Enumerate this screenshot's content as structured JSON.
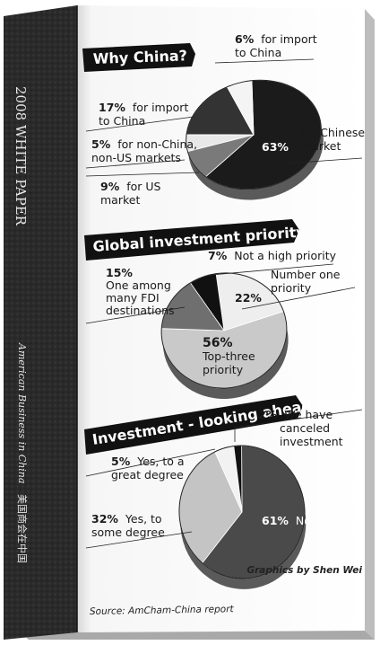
{
  "book": {
    "spine_title": "2008 WHITE PAPER",
    "spine_subtitle": "American Business in China",
    "spine_chinese": "美国商会在中国"
  },
  "charts_meta": {
    "credit": "Graphics by Shen Wei",
    "source": "Source: AmCham-China report"
  },
  "chart_data": [
    {
      "type": "pie",
      "title": "Why China?",
      "slices": [
        {
          "name": "for Chinese market",
          "value": 63,
          "pct_text": "63%",
          "label": [
            "for Chinese",
            "market"
          ],
          "color": "#1b1b1b"
        },
        {
          "name": "for US market",
          "value": 9,
          "pct_text": "9%",
          "label": [
            "for US",
            "market"
          ],
          "color": "#7a7a7a"
        },
        {
          "name": "for non-China, non-US markets",
          "value": 5,
          "pct_text": "5%",
          "label": [
            "for non-China,",
            "non-US markets"
          ],
          "color": "#e8e8e8"
        },
        {
          "name": "for import to China",
          "value": 17,
          "pct_text": "17%",
          "label": [
            "for import",
            "to China"
          ],
          "color": "#333333"
        },
        {
          "name": "for import to China",
          "value": 6,
          "pct_text": "6%",
          "label": [
            "for import",
            "to China"
          ],
          "color": "#f4f4f4"
        }
      ]
    },
    {
      "type": "pie",
      "title": "Global investment priority",
      "slices": [
        {
          "name": "Number one priority",
          "value": 22,
          "pct_text": "22%",
          "label": [
            "Number one",
            "priority"
          ],
          "color": "#eeeeee"
        },
        {
          "name": "Top-three priority",
          "value": 56,
          "pct_text": "56%",
          "label": [
            "Top-three",
            "priority"
          ],
          "color": "#c9c9c9"
        },
        {
          "name": "One among many FDI destinations",
          "value": 15,
          "pct_text": "15%",
          "label": [
            "One among",
            "many FDI",
            "destinations"
          ],
          "color": "#6f6f6f"
        },
        {
          "name": "Not a high priority",
          "value": 7,
          "pct_text": "7%",
          "label": [
            "Not a high priority"
          ],
          "color": "#111111"
        }
      ]
    },
    {
      "type": "pie",
      "title": "Investment - looking ahead",
      "slices": [
        {
          "name": "No",
          "value": 61,
          "pct_text": "61%",
          "label": [
            "No"
          ],
          "color": "#4a4a4a"
        },
        {
          "name": "Yes, to some degree",
          "value": 32,
          "pct_text": "32%",
          "label": [
            "Yes, to",
            "some degree"
          ],
          "color": "#c4c4c4"
        },
        {
          "name": "Yes, to a great degree",
          "value": 5,
          "pct_text": "5%",
          "label": [
            "Yes, to a",
            "great degree"
          ],
          "color": "#f2f2f2"
        },
        {
          "name": "We have canceled investment",
          "value": 2,
          "pct_text": "2%",
          "label": [
            "We have",
            "canceled",
            "investment"
          ],
          "color": "#111111"
        }
      ]
    }
  ]
}
